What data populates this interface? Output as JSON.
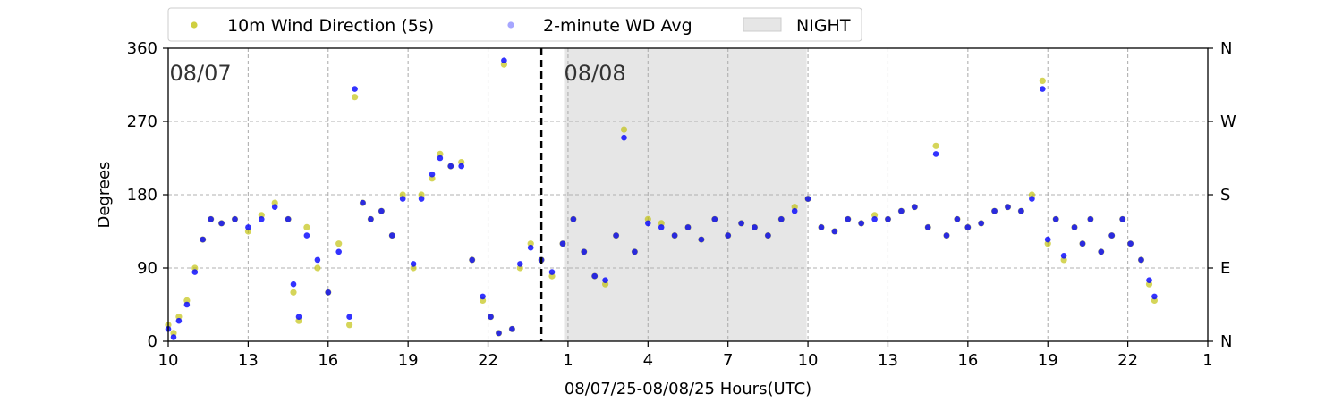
{
  "chart_data": {
    "type": "scatter",
    "title": "",
    "xlabel": "08/07/25-08/08/25  Hours(UTC)",
    "ylabel": "Degrees",
    "x_unit": "hours since 08/07 00 UTC",
    "xlim": [
      10,
      49
    ],
    "ylim": [
      0,
      360
    ],
    "x_ticks": [
      10,
      13,
      16,
      19,
      22,
      25,
      28,
      31,
      34,
      37,
      40,
      43,
      46,
      49
    ],
    "x_tick_labels": [
      "10",
      "13",
      "16",
      "19",
      "22",
      "1",
      "4",
      "7",
      "10",
      "13",
      "16",
      "19",
      "22",
      "1"
    ],
    "y_ticks": [
      0,
      90,
      180,
      270,
      360
    ],
    "y_tick_labels": [
      "0",
      "90",
      "180",
      "270",
      "360"
    ],
    "y2_tick_labels": [
      "N",
      "E",
      "S",
      "W",
      "N"
    ],
    "grid": true,
    "legend_position": "top-center",
    "night_band": {
      "label": "NIGHT",
      "start": 24.85,
      "end": 33.95,
      "color": "#e6e6e6"
    },
    "midnight_line": {
      "x": 24.0
    },
    "date_annotations": [
      {
        "text": "08/07",
        "x": 10.05,
        "y": 324
      },
      {
        "text": "08/08",
        "x": 24.85,
        "y": 324
      }
    ],
    "series": [
      {
        "name": "10m Wind Direction (5s)",
        "color": "#bfbf00",
        "points": [
          [
            10.0,
            20
          ],
          [
            10.2,
            10
          ],
          [
            10.4,
            30
          ],
          [
            10.7,
            50
          ],
          [
            11.0,
            90
          ],
          [
            11.3,
            125
          ],
          [
            11.6,
            150
          ],
          [
            12.0,
            145
          ],
          [
            12.5,
            150
          ],
          [
            13.0,
            135
          ],
          [
            13.5,
            155
          ],
          [
            14.0,
            170
          ],
          [
            14.5,
            150
          ],
          [
            14.7,
            60
          ],
          [
            14.9,
            25
          ],
          [
            15.2,
            140
          ],
          [
            15.6,
            90
          ],
          [
            16.0,
            60
          ],
          [
            16.4,
            120
          ],
          [
            16.8,
            20
          ],
          [
            17.0,
            300
          ],
          [
            17.3,
            170
          ],
          [
            17.6,
            150
          ],
          [
            18.0,
            160
          ],
          [
            18.4,
            130
          ],
          [
            18.8,
            180
          ],
          [
            19.2,
            90
          ],
          [
            19.5,
            180
          ],
          [
            19.9,
            200
          ],
          [
            20.2,
            230
          ],
          [
            20.6,
            215
          ],
          [
            21.0,
            220
          ],
          [
            21.4,
            100
          ],
          [
            21.8,
            50
          ],
          [
            22.1,
            30
          ],
          [
            22.4,
            10
          ],
          [
            22.6,
            340
          ],
          [
            22.9,
            15
          ],
          [
            23.2,
            90
          ],
          [
            23.6,
            120
          ],
          [
            24.0,
            100
          ],
          [
            24.4,
            80
          ],
          [
            24.8,
            120
          ],
          [
            25.2,
            150
          ],
          [
            25.6,
            110
          ],
          [
            26.0,
            80
          ],
          [
            26.4,
            70
          ],
          [
            26.8,
            130
          ],
          [
            27.1,
            260
          ],
          [
            27.5,
            110
          ],
          [
            28.0,
            150
          ],
          [
            28.5,
            145
          ],
          [
            29.0,
            130
          ],
          [
            29.5,
            140
          ],
          [
            30.0,
            125
          ],
          [
            30.5,
            150
          ],
          [
            31.0,
            130
          ],
          [
            31.5,
            145
          ],
          [
            32.0,
            140
          ],
          [
            32.5,
            130
          ],
          [
            33.0,
            150
          ],
          [
            33.5,
            165
          ],
          [
            34.0,
            175
          ],
          [
            34.5,
            140
          ],
          [
            35.0,
            135
          ],
          [
            35.5,
            150
          ],
          [
            36.0,
            145
          ],
          [
            36.5,
            155
          ],
          [
            37.0,
            150
          ],
          [
            37.5,
            160
          ],
          [
            38.0,
            165
          ],
          [
            38.5,
            140
          ],
          [
            38.8,
            240
          ],
          [
            39.2,
            130
          ],
          [
            39.6,
            150
          ],
          [
            40.0,
            140
          ],
          [
            40.5,
            145
          ],
          [
            41.0,
            160
          ],
          [
            41.5,
            165
          ],
          [
            42.0,
            160
          ],
          [
            42.4,
            180
          ],
          [
            42.8,
            320
          ],
          [
            43.0,
            120
          ],
          [
            43.3,
            150
          ],
          [
            43.6,
            100
          ],
          [
            44.0,
            140
          ],
          [
            44.3,
            120
          ],
          [
            44.6,
            150
          ],
          [
            45.0,
            110
          ],
          [
            45.4,
            130
          ],
          [
            45.8,
            150
          ],
          [
            46.1,
            120
          ],
          [
            46.5,
            100
          ],
          [
            46.8,
            70
          ],
          [
            47.0,
            50
          ]
        ]
      },
      {
        "name": "2-minute WD Avg",
        "color": "#0000ff",
        "points": [
          [
            10.0,
            15
          ],
          [
            10.2,
            5
          ],
          [
            10.4,
            25
          ],
          [
            10.7,
            45
          ],
          [
            11.0,
            85
          ],
          [
            11.3,
            125
          ],
          [
            11.6,
            150
          ],
          [
            12.0,
            145
          ],
          [
            12.5,
            150
          ],
          [
            13.0,
            140
          ],
          [
            13.5,
            150
          ],
          [
            14.0,
            165
          ],
          [
            14.5,
            150
          ],
          [
            14.7,
            70
          ],
          [
            14.9,
            30
          ],
          [
            15.2,
            130
          ],
          [
            15.6,
            100
          ],
          [
            16.0,
            60
          ],
          [
            16.4,
            110
          ],
          [
            16.8,
            30
          ],
          [
            17.0,
            310
          ],
          [
            17.3,
            170
          ],
          [
            17.6,
            150
          ],
          [
            18.0,
            160
          ],
          [
            18.4,
            130
          ],
          [
            18.8,
            175
          ],
          [
            19.2,
            95
          ],
          [
            19.5,
            175
          ],
          [
            19.9,
            205
          ],
          [
            20.2,
            225
          ],
          [
            20.6,
            215
          ],
          [
            21.0,
            215
          ],
          [
            21.4,
            100
          ],
          [
            21.8,
            55
          ],
          [
            22.1,
            30
          ],
          [
            22.4,
            10
          ],
          [
            22.6,
            345
          ],
          [
            22.9,
            15
          ],
          [
            23.2,
            95
          ],
          [
            23.6,
            115
          ],
          [
            24.0,
            100
          ],
          [
            24.4,
            85
          ],
          [
            24.8,
            120
          ],
          [
            25.2,
            150
          ],
          [
            25.6,
            110
          ],
          [
            26.0,
            80
          ],
          [
            26.4,
            75
          ],
          [
            26.8,
            130
          ],
          [
            27.1,
            250
          ],
          [
            27.5,
            110
          ],
          [
            28.0,
            145
          ],
          [
            28.5,
            140
          ],
          [
            29.0,
            130
          ],
          [
            29.5,
            140
          ],
          [
            30.0,
            125
          ],
          [
            30.5,
            150
          ],
          [
            31.0,
            130
          ],
          [
            31.5,
            145
          ],
          [
            32.0,
            140
          ],
          [
            32.5,
            130
          ],
          [
            33.0,
            150
          ],
          [
            33.5,
            160
          ],
          [
            34.0,
            175
          ],
          [
            34.5,
            140
          ],
          [
            35.0,
            135
          ],
          [
            35.5,
            150
          ],
          [
            36.0,
            145
          ],
          [
            36.5,
            150
          ],
          [
            37.0,
            150
          ],
          [
            37.5,
            160
          ],
          [
            38.0,
            165
          ],
          [
            38.5,
            140
          ],
          [
            38.8,
            230
          ],
          [
            39.2,
            130
          ],
          [
            39.6,
            150
          ],
          [
            40.0,
            140
          ],
          [
            40.5,
            145
          ],
          [
            41.0,
            160
          ],
          [
            41.5,
            165
          ],
          [
            42.0,
            160
          ],
          [
            42.4,
            175
          ],
          [
            42.8,
            310
          ],
          [
            43.0,
            125
          ],
          [
            43.3,
            150
          ],
          [
            43.6,
            105
          ],
          [
            44.0,
            140
          ],
          [
            44.3,
            120
          ],
          [
            44.6,
            150
          ],
          [
            45.0,
            110
          ],
          [
            45.4,
            130
          ],
          [
            45.8,
            150
          ],
          [
            46.1,
            120
          ],
          [
            46.5,
            100
          ],
          [
            46.8,
            75
          ],
          [
            47.0,
            55
          ]
        ]
      }
    ]
  }
}
